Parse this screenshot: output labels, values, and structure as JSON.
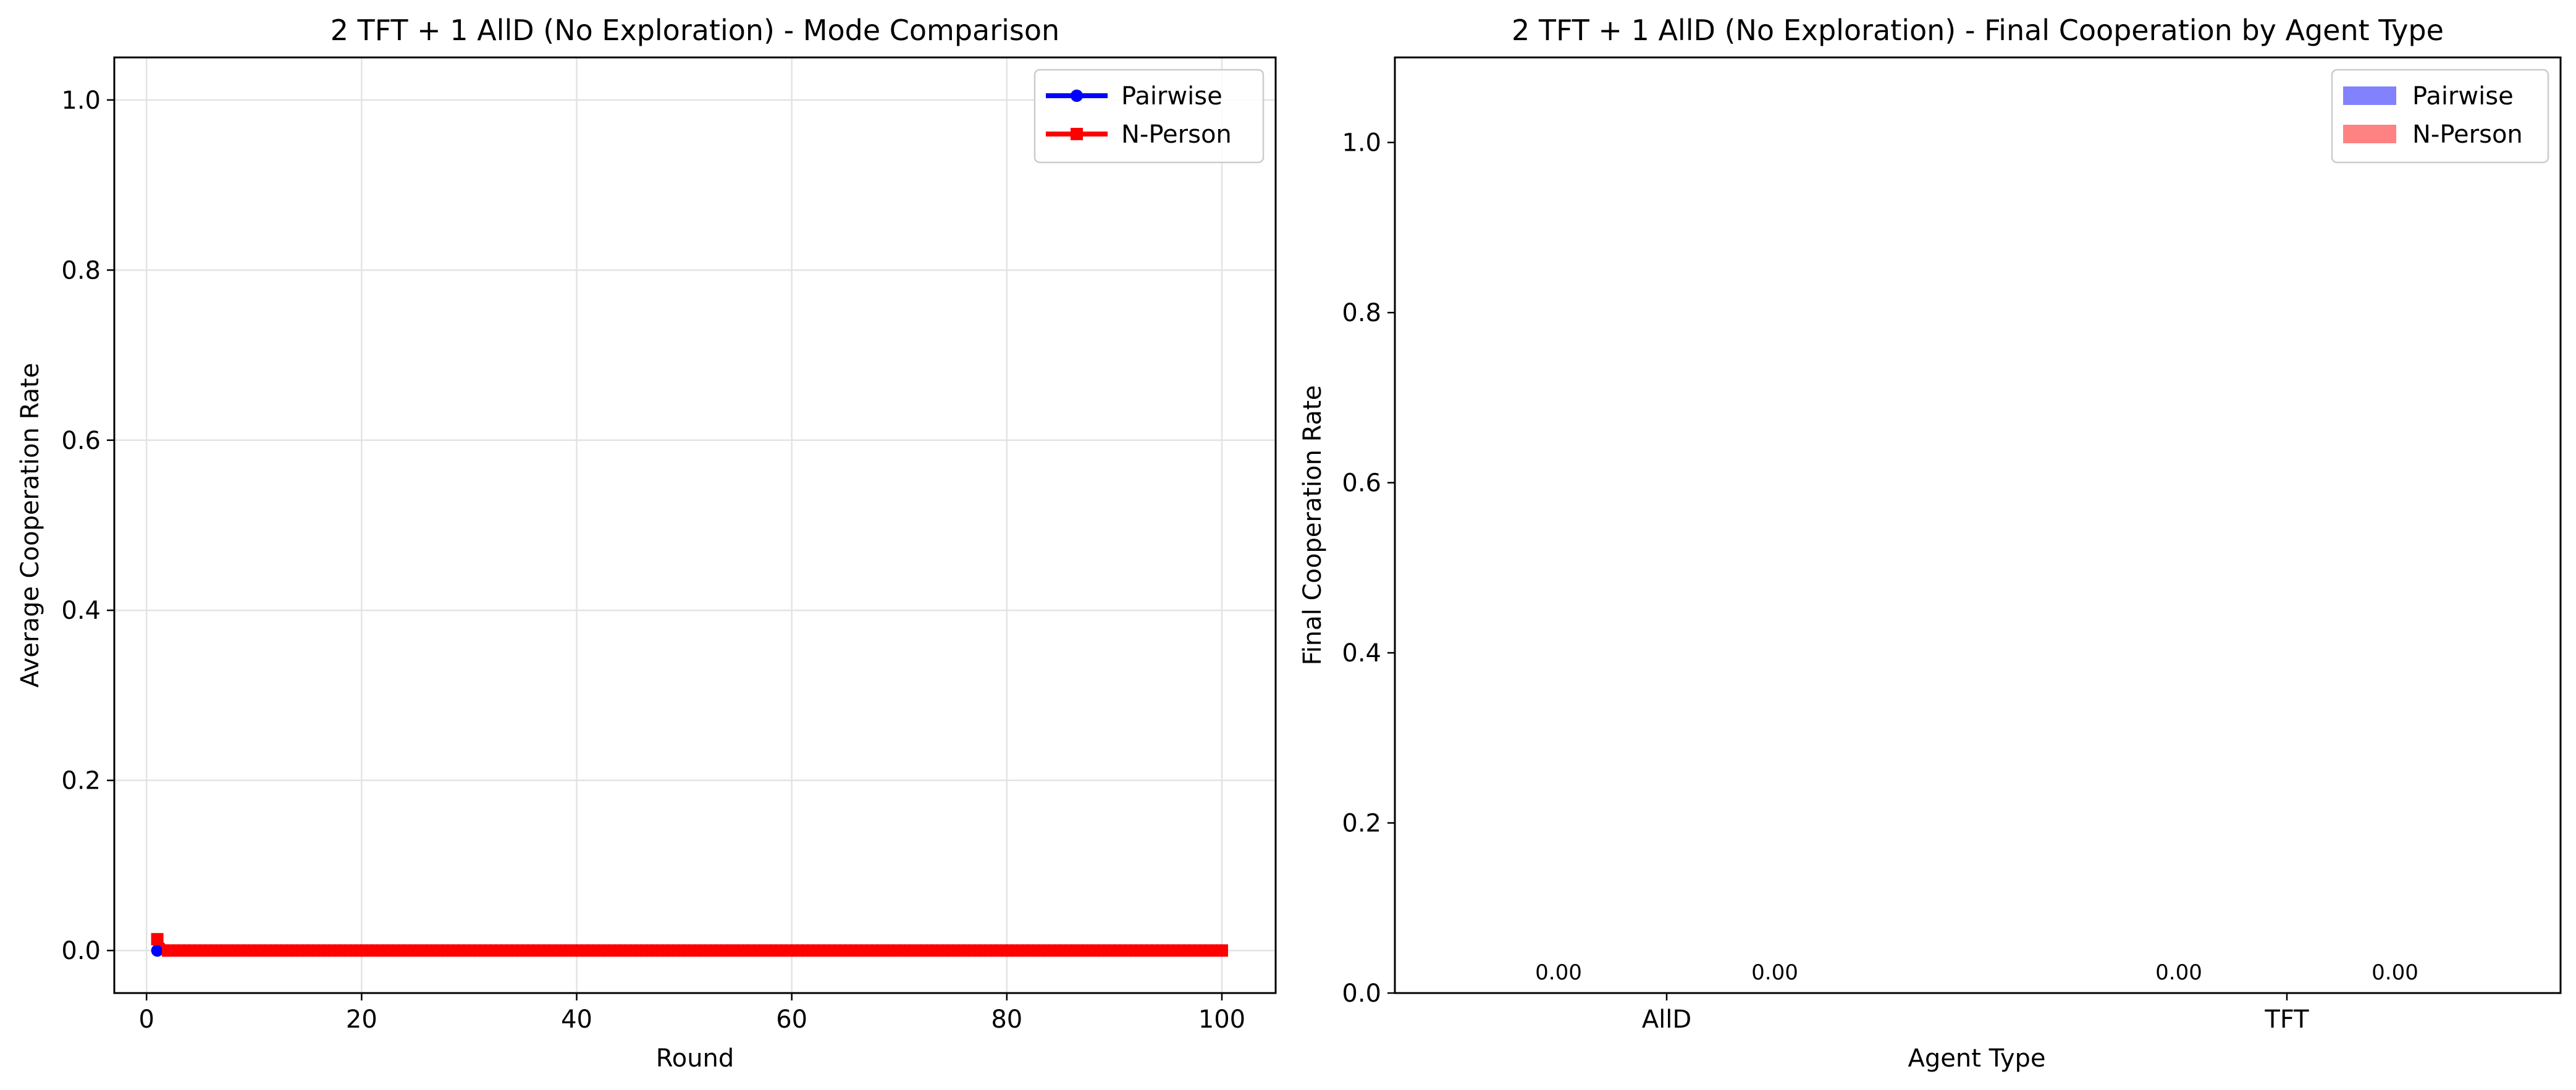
{
  "chart_data": [
    {
      "type": "line",
      "title": "2 TFT + 1 AllD (No Exploration) - Mode Comparison",
      "xlabel": "Round",
      "ylabel": "Average Cooperation Rate",
      "xlim": [
        -3,
        105
      ],
      "ylim": [
        -0.05,
        1.05
      ],
      "xticks": [
        0,
        20,
        40,
        60,
        80,
        100
      ],
      "xtick_labels": [
        "0",
        "20",
        "40",
        "60",
        "80",
        "100"
      ],
      "yticks": [
        0.0,
        0.2,
        0.4,
        0.6,
        0.8,
        1.0
      ],
      "ytick_labels": [
        "0.0",
        "0.2",
        "0.4",
        "0.6",
        "0.8",
        "1.0"
      ],
      "grid": true,
      "legend": "top-right",
      "series": [
        {
          "name": "Pairwise",
          "color": "#0000ff",
          "marker": "circle",
          "x_start": 1,
          "x_end": 100,
          "values_rule": "0.0 for all rounds 1-100 (hidden beneath N-Person line)",
          "first_value": 0.0,
          "other_value": 0.0
        },
        {
          "name": "N-Person",
          "color": "#ff0000",
          "marker": "square",
          "x_start": 1,
          "x_end": 100,
          "values_rule": "0.0133 at round 1, then 0.0 for rounds 2-100",
          "first_value": 0.0133,
          "other_value": 0.0
        }
      ]
    },
    {
      "type": "bar",
      "title": "2 TFT + 1 AllD (No Exploration) - Final Cooperation by Agent Type",
      "xlabel": "Agent Type",
      "ylabel": "Final Cooperation Rate",
      "categories": [
        "AllD",
        "TFT"
      ],
      "ylim": [
        0,
        1.1
      ],
      "yticks": [
        0.0,
        0.2,
        0.4,
        0.6,
        0.8,
        1.0
      ],
      "ytick_labels": [
        "0.0",
        "0.2",
        "0.4",
        "0.6",
        "0.8",
        "1.0"
      ],
      "grid": false,
      "legend": "top-right",
      "series": [
        {
          "name": "Pairwise",
          "color": "#4d4dff",
          "values": [
            0.0,
            0.0
          ],
          "labels": [
            "0.00",
            "0.00"
          ]
        },
        {
          "name": "N-Person",
          "color": "#ff4d4d",
          "values": [
            0.0,
            0.0
          ],
          "labels": [
            "0.00",
            "0.00"
          ]
        }
      ]
    }
  ]
}
